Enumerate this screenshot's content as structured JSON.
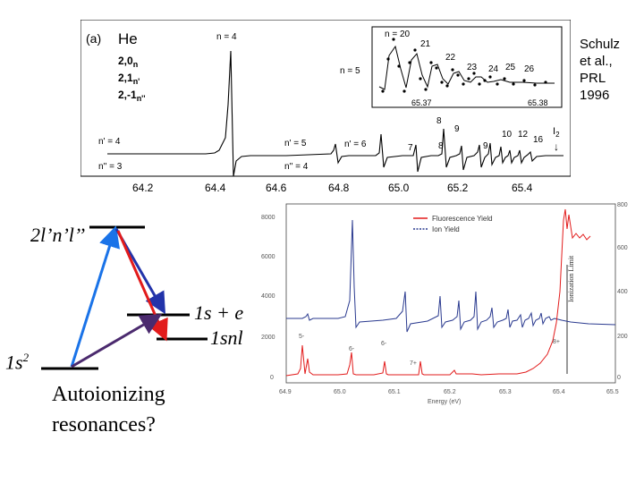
{
  "citation": "Schulz\net al.,\nPRL\n1996",
  "figure_top": {
    "panel_label": "(a)",
    "element": "He",
    "series_labels": [
      "2,0",
      "2,1",
      "2,-1"
    ],
    "series_subscripts": [
      "n",
      "n'",
      "n''"
    ],
    "peak_labels": [
      "n = 4",
      "n = 5",
      "n' = 4",
      "n' = 5",
      "n' = 6",
      "n'' = 3",
      "n'' = 4",
      "7",
      "8",
      "9",
      "8",
      "9",
      "10",
      "12",
      "16"
    ],
    "i2_label": "I",
    "i2_subscript": "2",
    "i2_arrow": "↓",
    "x_ticks": [
      "64.2",
      "64.4",
      "64.6",
      "64.8",
      "65.0",
      "65.2",
      "65.4"
    ],
    "inset": {
      "labels": [
        "n = 20",
        "21",
        "22",
        "23",
        "24",
        "25",
        "26"
      ],
      "x_ticks": [
        "65.37",
        "65.38"
      ]
    }
  },
  "figure_bottom": {
    "legend": [
      {
        "label": "Fluorescence Yield",
        "color": "#e21b1b"
      },
      {
        "label": "Ion Yield",
        "color": "#2a3a8f"
      }
    ],
    "left_ticks": [
      "8000",
      "6000",
      "4000",
      "2000",
      "0"
    ],
    "right_ticks": [
      "800",
      "600",
      "400",
      "200",
      "0"
    ],
    "x_ticks": [
      "64.9",
      "65.0",
      "65.1",
      "65.2",
      "65.3",
      "65.4",
      "65.5"
    ],
    "xlabel": "Energy (eV)",
    "vline_label": "Ionization Limit",
    "peak_labels": [
      "5-",
      "6-",
      "6-",
      "7+",
      "8+"
    ]
  },
  "diagram": {
    "levels": {
      "upper": "2l’n’l’’",
      "continuum": "1s + e",
      "rydberg": "1snl",
      "ground_base": "1s",
      "ground_sup": "2"
    },
    "arrow_colors": [
      "#1a73e8",
      "#2233aa",
      "#e21b1b",
      "#4b2a6e"
    ],
    "caption": "Autoionizing resonances?"
  }
}
